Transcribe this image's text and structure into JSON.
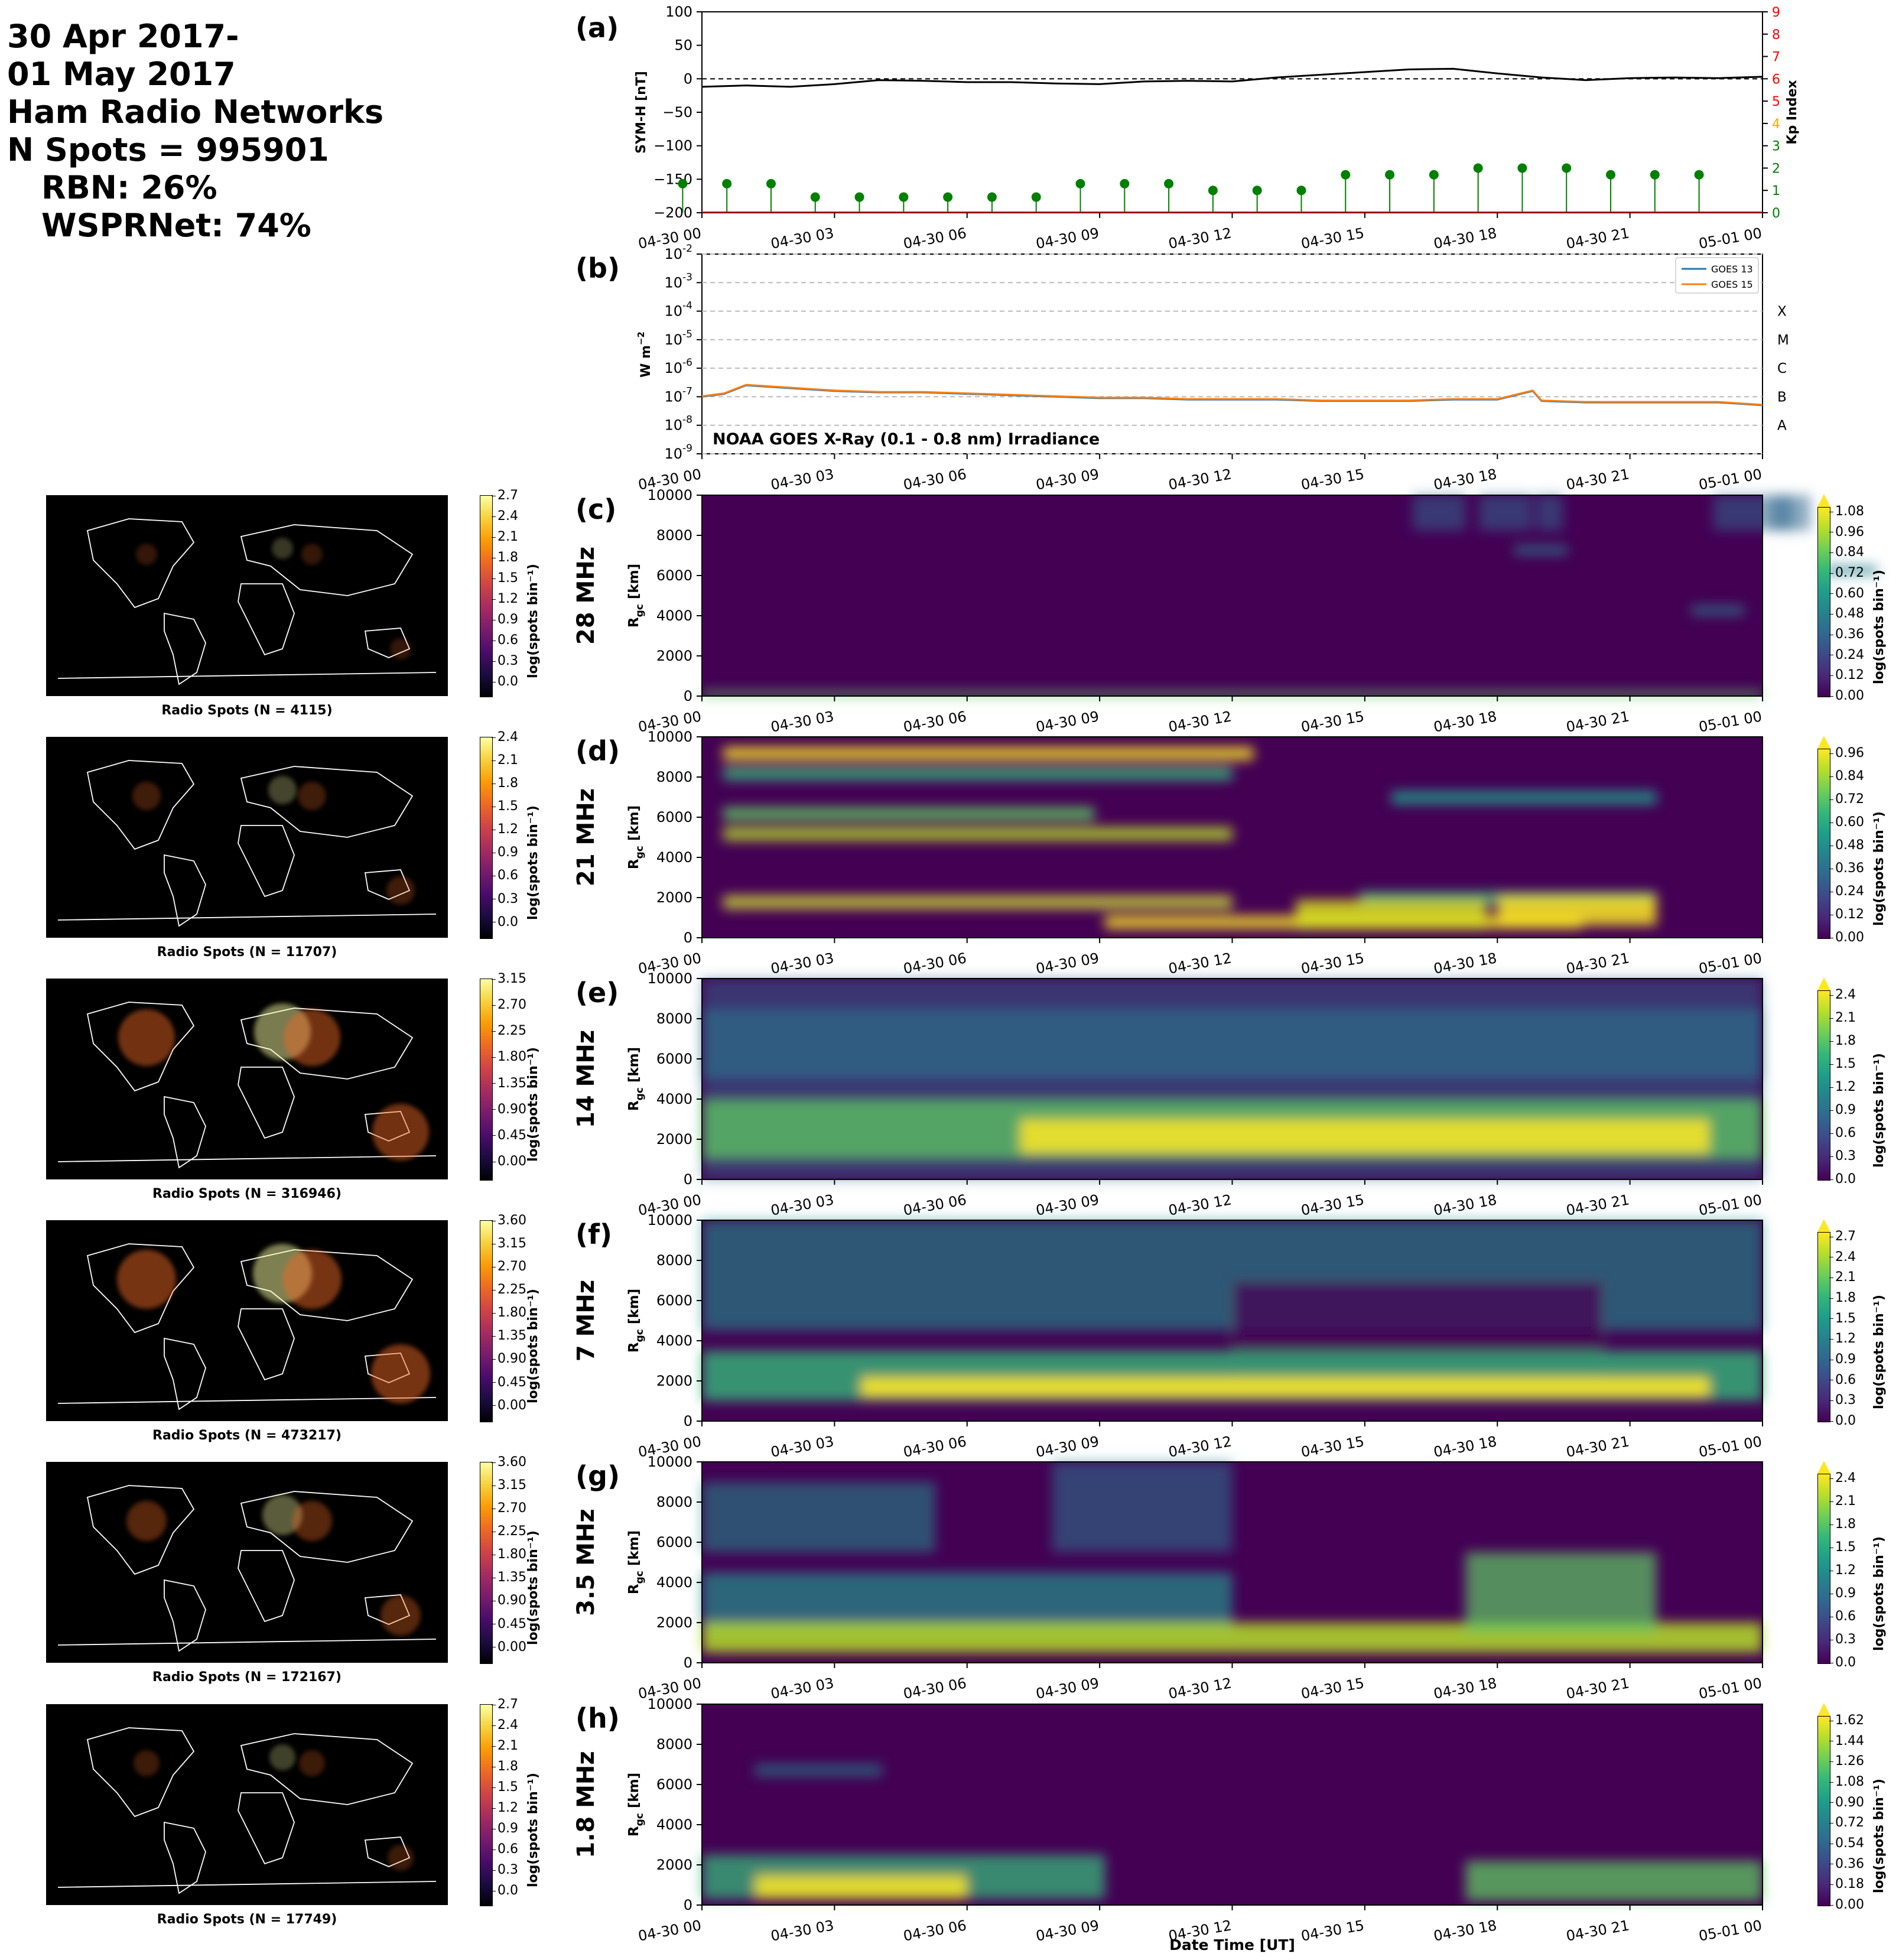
{
  "header": {
    "line1": "30 Apr 2017-",
    "line2": "01 May 2017",
    "line3": "Ham Radio Networks",
    "line4": "N Spots = 995901",
    "line5": "RBN: 26%",
    "line6": "WSPRNet: 74%"
  },
  "time_ticks": [
    "04-30 00",
    "04-30 03",
    "04-30 06",
    "04-30 09",
    "04-30 12",
    "04-30 15",
    "04-30 18",
    "04-30 21",
    "05-01 00"
  ],
  "xlabel": "Date Time [UT]",
  "colors": {
    "symh": "#000000",
    "kp": "#008000",
    "kp_axis": "#ff0000",
    "goes13": "#1f77b4",
    "goes15": "#ff7f0e"
  },
  "chart_data": [
    {
      "panel": "(a)",
      "type": "line",
      "ylabel": "SYM-H [nT]",
      "ylim": [
        -200,
        100
      ],
      "yticks": [
        "100",
        "50",
        "0",
        "−50",
        "−100",
        "−150",
        "−200"
      ],
      "x_hours": [
        0,
        1,
        2,
        3,
        4,
        5,
        6,
        7,
        8,
        9,
        10,
        11,
        12,
        13,
        14,
        15,
        16,
        17,
        18,
        19,
        20,
        21,
        22,
        23,
        24
      ],
      "symh": [
        -12,
        -10,
        -12,
        -8,
        -2,
        -3,
        -5,
        -5,
        -7,
        -8,
        -4,
        -3,
        -4,
        2,
        6,
        10,
        14,
        15,
        8,
        2,
        -2,
        1,
        2,
        1,
        3
      ],
      "kp_axis_label": "Kp Index",
      "kp_ticks": [
        "0",
        "1",
        "2",
        "3",
        "4",
        "5",
        "6",
        "7",
        "8",
        "9"
      ],
      "kp": [
        1.3,
        1.3,
        1.3,
        0.7,
        0.7,
        0.7,
        0.7,
        0.7,
        0.7,
        1.3,
        1.3,
        1.3,
        1.0,
        1.0,
        1.0,
        1.7,
        1.7,
        1.7,
        2.0,
        2.0,
        2.0,
        1.7,
        1.7,
        1.7
      ]
    },
    {
      "panel": "(b)",
      "type": "line",
      "ylabel": "W m",
      "ylabel_sup": "−2",
      "annotation": "NOAA GOES X-Ray (0.1 - 0.8 nm) Irradiance",
      "ylim_exp": [
        -9,
        -2
      ],
      "yticks_exp": [
        "-2",
        "-3",
        "-4",
        "-5",
        "-6",
        "-7",
        "-8",
        "-9"
      ],
      "flare_classes": [
        "X",
        "M",
        "C",
        "B",
        "A"
      ],
      "series": [
        {
          "name": "GOES 13",
          "x_hours": [
            0,
            0.5,
            1,
            2,
            3,
            4,
            5,
            6,
            7,
            8,
            9,
            10,
            11,
            12,
            13,
            14,
            15,
            16,
            17,
            18,
            18.8,
            19,
            20,
            21,
            22,
            23,
            24
          ],
          "log10_flux": [
            -7,
            -6.9,
            -6.6,
            -6.7,
            -6.8,
            -6.85,
            -6.85,
            -6.9,
            -6.95,
            -7,
            -7.05,
            -7.05,
            -7.1,
            -7.1,
            -7.1,
            -7.15,
            -7.15,
            -7.15,
            -7.1,
            -7.1,
            -6.8,
            -7.15,
            -7.2,
            -7.2,
            -7.2,
            -7.2,
            -7.3
          ]
        },
        {
          "name": "GOES 15",
          "x_hours": [
            0,
            0.5,
            1,
            2,
            3,
            4,
            5,
            6,
            7,
            8,
            9,
            10,
            11,
            12,
            13,
            14,
            15,
            16,
            17,
            18,
            18.8,
            19,
            20,
            21,
            22,
            23,
            24
          ],
          "log10_flux": [
            -6.98,
            -6.88,
            -6.58,
            -6.68,
            -6.78,
            -6.83,
            -6.83,
            -6.88,
            -6.93,
            -6.98,
            -7.03,
            -7.03,
            -7.08,
            -7.08,
            -7.08,
            -7.13,
            -7.13,
            -7.13,
            -7.08,
            -7.08,
            -6.78,
            -7.13,
            -7.18,
            -7.18,
            -7.18,
            -7.18,
            -7.28
          ]
        }
      ]
    },
    {
      "panel": "(c)",
      "type": "heatmap",
      "band": "28 MHz",
      "ylabel": "R",
      "ylabel_sub": "gc",
      "ylabel_unit": " [km]",
      "yticks": [
        "10000",
        "8000",
        "6000",
        "4000",
        "2000",
        "0"
      ],
      "cbar_ticks": [
        "1.08",
        "0.96",
        "0.84",
        "0.72",
        "0.60",
        "0.48",
        "0.36",
        "0.24",
        "0.12",
        "0.00"
      ],
      "cbar_label": "log(spots bin",
      "map_caption": "Radio Spots (N = 4115)",
      "map_cbar_ticks": [
        "2.7",
        "2.4",
        "2.1",
        "1.8",
        "1.5",
        "1.2",
        "0.9",
        "0.6",
        "0.3",
        "0.0"
      ]
    },
    {
      "panel": "(d)",
      "type": "heatmap",
      "band": "21 MHz",
      "ylabel": "R",
      "ylabel_sub": "gc",
      "ylabel_unit": " [km]",
      "yticks": [
        "10000",
        "8000",
        "6000",
        "4000",
        "2000",
        "0"
      ],
      "cbar_ticks": [
        "0.96",
        "0.84",
        "0.72",
        "0.60",
        "0.48",
        "0.36",
        "0.24",
        "0.12",
        "0.00"
      ],
      "cbar_label": "log(spots bin",
      "map_caption": "Radio Spots (N = 11707)",
      "map_cbar_ticks": [
        "2.4",
        "2.1",
        "1.8",
        "1.5",
        "1.2",
        "0.9",
        "0.6",
        "0.3",
        "0.0"
      ]
    },
    {
      "panel": "(e)",
      "type": "heatmap",
      "band": "14 MHz",
      "ylabel": "R",
      "ylabel_sub": "gc",
      "ylabel_unit": " [km]",
      "yticks": [
        "10000",
        "8000",
        "6000",
        "4000",
        "2000",
        "0"
      ],
      "cbar_ticks": [
        "2.4",
        "2.1",
        "1.8",
        "1.5",
        "1.2",
        "0.9",
        "0.6",
        "0.3",
        "0.0"
      ],
      "cbar_label": "log(spots bin",
      "map_caption": "Radio Spots (N = 316946)",
      "map_cbar_ticks": [
        "3.15",
        "2.70",
        "2.25",
        "1.80",
        "1.35",
        "0.90",
        "0.45",
        "0.00"
      ]
    },
    {
      "panel": "(f)",
      "type": "heatmap",
      "band": "7 MHz",
      "ylabel": "R",
      "ylabel_sub": "gc",
      "ylabel_unit": " [km]",
      "yticks": [
        "10000",
        "8000",
        "6000",
        "4000",
        "2000",
        "0"
      ],
      "cbar_ticks": [
        "2.7",
        "2.4",
        "2.1",
        "1.8",
        "1.5",
        "1.2",
        "0.9",
        "0.6",
        "0.3",
        "0.0"
      ],
      "cbar_label": "log(spots bin",
      "map_caption": "Radio Spots (N = 473217)",
      "map_cbar_ticks": [
        "3.60",
        "3.15",
        "2.70",
        "2.25",
        "1.80",
        "1.35",
        "0.90",
        "0.45",
        "0.00"
      ]
    },
    {
      "panel": "(g)",
      "type": "heatmap",
      "band": "3.5 MHz",
      "ylabel": "R",
      "ylabel_sub": "gc",
      "ylabel_unit": " [km]",
      "yticks": [
        "10000",
        "8000",
        "6000",
        "4000",
        "2000",
        "0"
      ],
      "cbar_ticks": [
        "2.4",
        "2.1",
        "1.8",
        "1.5",
        "1.2",
        "0.9",
        "0.6",
        "0.3",
        "0.0"
      ],
      "cbar_label": "log(spots bin",
      "map_caption": "Radio Spots (N = 172167)",
      "map_cbar_ticks": [
        "3.60",
        "3.15",
        "2.70",
        "2.25",
        "1.80",
        "1.35",
        "0.90",
        "0.45",
        "0.00"
      ]
    },
    {
      "panel": "(h)",
      "type": "heatmap",
      "band": "1.8 MHz",
      "ylabel": "R",
      "ylabel_sub": "gc",
      "ylabel_unit": " [km]",
      "yticks": [
        "10000",
        "8000",
        "6000",
        "4000",
        "2000",
        "0"
      ],
      "cbar_ticks": [
        "1.62",
        "1.44",
        "1.26",
        "1.08",
        "0.90",
        "0.72",
        "0.54",
        "0.36",
        "0.18",
        "0.00"
      ],
      "cbar_label": "log(spots bin",
      "map_caption": "Radio Spots (N = 17749)",
      "map_cbar_ticks": [
        "2.7",
        "2.4",
        "2.1",
        "1.8",
        "1.5",
        "1.2",
        "0.9",
        "0.6",
        "0.3",
        "0.0"
      ]
    }
  ]
}
